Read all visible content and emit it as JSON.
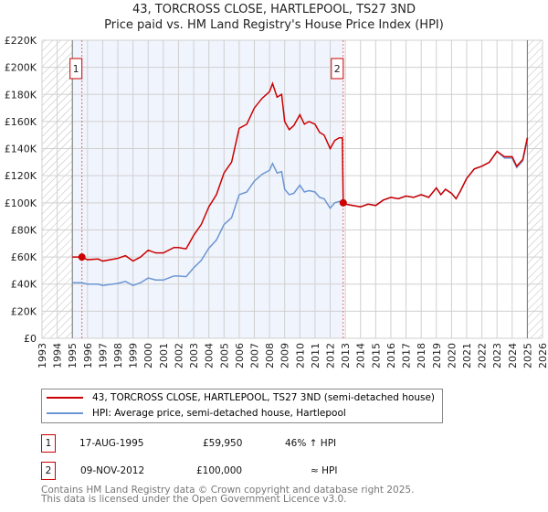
{
  "chart_data": {
    "type": "line",
    "title": "43, TORCROSS CLOSE, HARTLEPOOL, TS27 3ND",
    "subtitle": "Price paid vs. HM Land Registry's House Price Index (HPI)",
    "xlim": [
      1993,
      2026
    ],
    "ylim": [
      0,
      220000
    ],
    "x_ticks": [
      "1993",
      "1994",
      "1995",
      "1996",
      "1997",
      "1998",
      "1999",
      "2000",
      "2001",
      "2002",
      "2003",
      "2004",
      "2005",
      "2006",
      "2007",
      "2008",
      "2009",
      "2010",
      "2011",
      "2012",
      "2013",
      "2014",
      "2015",
      "2016",
      "2017",
      "2018",
      "2019",
      "2020",
      "2021",
      "2022",
      "2023",
      "2024",
      "2025",
      "2026"
    ],
    "y_ticks": [
      "£0",
      "£20K",
      "£40K",
      "£60K",
      "£80K",
      "£100K",
      "£120K",
      "£140K",
      "£160K",
      "£180K",
      "£200K",
      "£220K"
    ],
    "grid": true,
    "series": [
      {
        "name": "43, TORCROSS CLOSE, HARTLEPOOL, TS27 3ND (semi-detached house)",
        "color": "#cc0000",
        "x": [
          1995,
          1995.6,
          1996,
          1996.7,
          1997,
          1998,
          1998.5,
          1999,
          1999.5,
          2000,
          2000.5,
          2001,
          2001.7,
          2002,
          2002.5,
          2003,
          2003.5,
          2004,
          2004.5,
          2005,
          2005.5,
          2006,
          2006.5,
          2007,
          2007.5,
          2008,
          2008.2,
          2008.5,
          2008.8,
          2009,
          2009.3,
          2009.6,
          2010,
          2010.3,
          2010.6,
          2011,
          2011.3,
          2011.6,
          2012,
          2012.3,
          2012.6,
          2012.8,
          2012.86,
          2013,
          2013.5,
          2014,
          2014.5,
          2015,
          2015.5,
          2016,
          2016.5,
          2017,
          2017.5,
          2018,
          2018.5,
          2019,
          2019.3,
          2019.6,
          2020,
          2020.3,
          2020.6,
          2021,
          2021.5,
          2022,
          2022.5,
          2023,
          2023.5,
          2024,
          2024.3,
          2024.7,
          2025
        ],
        "y": [
          60000,
          59950,
          58000,
          58500,
          57000,
          59000,
          61000,
          57000,
          60000,
          65000,
          63000,
          63000,
          67000,
          67000,
          66000,
          76000,
          84000,
          97000,
          106000,
          122000,
          130000,
          155000,
          158000,
          170000,
          177000,
          182000,
          188000,
          178000,
          180000,
          160000,
          154000,
          157000,
          165000,
          158000,
          160000,
          158000,
          152000,
          150000,
          140000,
          146000,
          148000,
          148000,
          100000,
          99000,
          98000,
          97000,
          99000,
          98000,
          102000,
          104000,
          103000,
          105000,
          104000,
          106000,
          104000,
          111000,
          106000,
          110000,
          107000,
          103000,
          109000,
          118000,
          125000,
          127000,
          130000,
          138000,
          134000,
          134000,
          127000,
          132000,
          148000
        ]
      },
      {
        "name": "HPI: Average price, semi-detached house, Hartlepool",
        "color": "#6a96d4",
        "x": [
          1995,
          1995.6,
          1996,
          1996.7,
          1997,
          1998,
          1998.5,
          1999,
          1999.5,
          2000,
          2000.5,
          2001,
          2001.7,
          2002,
          2002.5,
          2003,
          2003.5,
          2004,
          2004.5,
          2005,
          2005.5,
          2006,
          2006.5,
          2007,
          2007.5,
          2008,
          2008.2,
          2008.5,
          2008.8,
          2009,
          2009.3,
          2009.6,
          2010,
          2010.3,
          2010.6,
          2011,
          2011.3,
          2011.6,
          2012,
          2012.3,
          2012.6,
          2012.8,
          2012.86,
          2013,
          2013.5,
          2014,
          2014.5,
          2015,
          2015.5,
          2016,
          2016.5,
          2017,
          2017.5,
          2018,
          2018.5,
          2019,
          2019.3,
          2019.6,
          2020,
          2020.3,
          2020.6,
          2021,
          2021.5,
          2022,
          2022.5,
          2023,
          2023.5,
          2024,
          2024.3,
          2024.7,
          2025
        ],
        "y": [
          41000,
          41000,
          40000,
          40000,
          39000,
          40500,
          42000,
          39000,
          41000,
          44500,
          43000,
          43000,
          46000,
          46000,
          45500,
          52000,
          57500,
          66500,
          72500,
          84000,
          89000,
          106000,
          108000,
          116000,
          121000,
          124000,
          129000,
          122000,
          123000,
          110000,
          106000,
          107000,
          113000,
          108000,
          109000,
          108000,
          104000,
          103000,
          96000,
          100000,
          101000,
          101000,
          100000,
          99000,
          98000,
          97000,
          99000,
          98000,
          102000,
          104000,
          103000,
          105000,
          104000,
          106000,
          104000,
          111000,
          106000,
          110000,
          107000,
          103000,
          109000,
          118000,
          125000,
          127000,
          130000,
          138000,
          133000,
          133000,
          126000,
          131000,
          147000
        ]
      }
    ],
    "shaded_span": [
      1995,
      2012.86
    ],
    "hatched_before": 1995,
    "hatched_after": 2025,
    "annotations": [
      {
        "label": "1",
        "x": 1995.63,
        "y": 59950
      },
      {
        "label": "2",
        "x": 2012.86,
        "y": 100000
      }
    ]
  },
  "legend": {
    "items": [
      "43, TORCROSS CLOSE, HARTLEPOOL, TS27 3ND (semi-detached house)",
      "HPI: Average price, semi-detached house, Hartlepool"
    ]
  },
  "transactions": [
    {
      "num": "1",
      "date": "17-AUG-1995",
      "price": "£59,950",
      "vs_hpi": "46% ↑ HPI"
    },
    {
      "num": "2",
      "date": "09-NOV-2012",
      "price": "£100,000",
      "vs_hpi": "≈ HPI"
    }
  ],
  "footer": {
    "line1": "Contains HM Land Registry data © Crown copyright and database right 2025.",
    "line2": "This data is licensed under the Open Government Licence v3.0."
  }
}
